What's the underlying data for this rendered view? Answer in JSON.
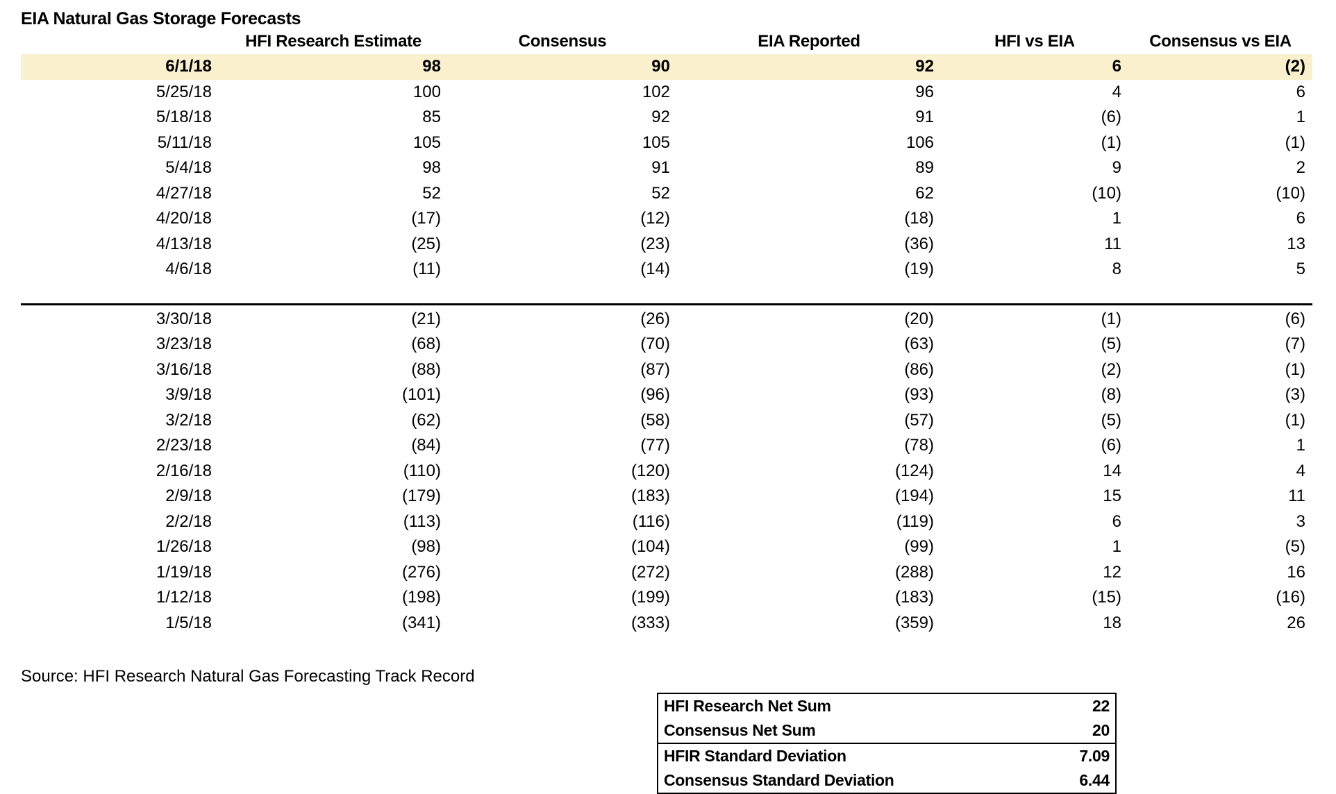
{
  "title": "EIA Natural Gas Storage Forecasts",
  "source_note": "Source: HFI Research Natural Gas Forecasting Track Record",
  "colors": {
    "highlight_row": "#FAF0CD",
    "text": "#000000",
    "background": "#FFFFFF"
  },
  "chart_data": {
    "type": "table",
    "title": "EIA Natural Gas Storage Forecasts",
    "columns": [
      "",
      "HFI Research Estimate",
      "Consensus",
      "EIA Reported",
      "HFI vs EIA",
      "Consensus vs EIA"
    ],
    "highlighted_row": "6/1/18",
    "negative_format": "parentheses",
    "sections": [
      {
        "rows": [
          [
            "6/1/18",
            "98",
            "90",
            "92",
            "6",
            "(2)"
          ],
          [
            "5/25/18",
            "100",
            "102",
            "96",
            "4",
            "6"
          ],
          [
            "5/18/18",
            "85",
            "92",
            "91",
            "(6)",
            "1"
          ],
          [
            "5/11/18",
            "105",
            "105",
            "106",
            "(1)",
            "(1)"
          ],
          [
            "5/4/18",
            "98",
            "91",
            "89",
            "9",
            "2"
          ],
          [
            "4/27/18",
            "52",
            "52",
            "62",
            "(10)",
            "(10)"
          ],
          [
            "4/20/18",
            "(17)",
            "(12)",
            "(18)",
            "1",
            "6"
          ],
          [
            "4/13/18",
            "(25)",
            "(23)",
            "(36)",
            "11",
            "13"
          ],
          [
            "4/6/18",
            "(11)",
            "(14)",
            "(19)",
            "8",
            "5"
          ]
        ]
      },
      {
        "rows": [
          [
            "3/30/18",
            "(21)",
            "(26)",
            "(20)",
            "(1)",
            "(6)"
          ],
          [
            "3/23/18",
            "(68)",
            "(70)",
            "(63)",
            "(5)",
            "(7)"
          ],
          [
            "3/16/18",
            "(88)",
            "(87)",
            "(86)",
            "(2)",
            "(1)"
          ],
          [
            "3/9/18",
            "(101)",
            "(96)",
            "(93)",
            "(8)",
            "(3)"
          ],
          [
            "3/2/18",
            "(62)",
            "(58)",
            "(57)",
            "(5)",
            "(1)"
          ],
          [
            "2/23/18",
            "(84)",
            "(77)",
            "(78)",
            "(6)",
            "1"
          ],
          [
            "2/16/18",
            "(110)",
            "(120)",
            "(124)",
            "14",
            "4"
          ],
          [
            "2/9/18",
            "(179)",
            "(183)",
            "(194)",
            "15",
            "11"
          ],
          [
            "2/2/18",
            "(113)",
            "(116)",
            "(119)",
            "6",
            "3"
          ],
          [
            "1/26/18",
            "(98)",
            "(104)",
            "(99)",
            "1",
            "(5)"
          ],
          [
            "1/19/18",
            "(276)",
            "(272)",
            "(288)",
            "12",
            "16"
          ],
          [
            "1/12/18",
            "(198)",
            "(199)",
            "(183)",
            "(15)",
            "(16)"
          ],
          [
            "1/5/18",
            "(341)",
            "(333)",
            "(359)",
            "18",
            "26"
          ]
        ]
      }
    ],
    "summary_table": {
      "groups": [
        {
          "rows": [
            [
              "HFI Research Net Sum",
              "22"
            ],
            [
              "Consensus Net Sum",
              "20"
            ]
          ]
        },
        {
          "rows": [
            [
              "HFIR Standard Deviation",
              "7.09"
            ],
            [
              "Consensus Standard Deviation",
              "6.44"
            ]
          ]
        }
      ]
    }
  }
}
